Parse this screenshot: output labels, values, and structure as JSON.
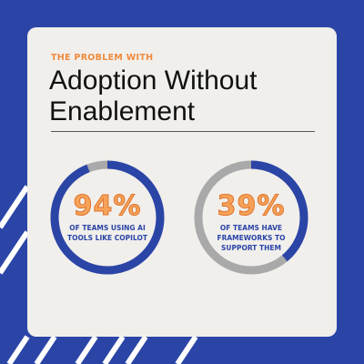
{
  "colors": {
    "background": "#2b45a7",
    "card": "#f1efec",
    "accent": "#f08a3c",
    "ring_track": "#a9a9a9",
    "ring_fill": "#2b45a7"
  },
  "header": {
    "eyebrow": "THE PROBLEM WITH",
    "title": "Adoption Without Enablement"
  },
  "stats": [
    {
      "percent_text": "94%",
      "value": 0.94,
      "label": "OF TEAMS USING AI TOOLS LIKE COPILOT"
    },
    {
      "percent_text": "39%",
      "value": 0.39,
      "label": "OF TEAMS HAVE FRAMEWORKS TO SUPPORT THEM"
    }
  ]
}
